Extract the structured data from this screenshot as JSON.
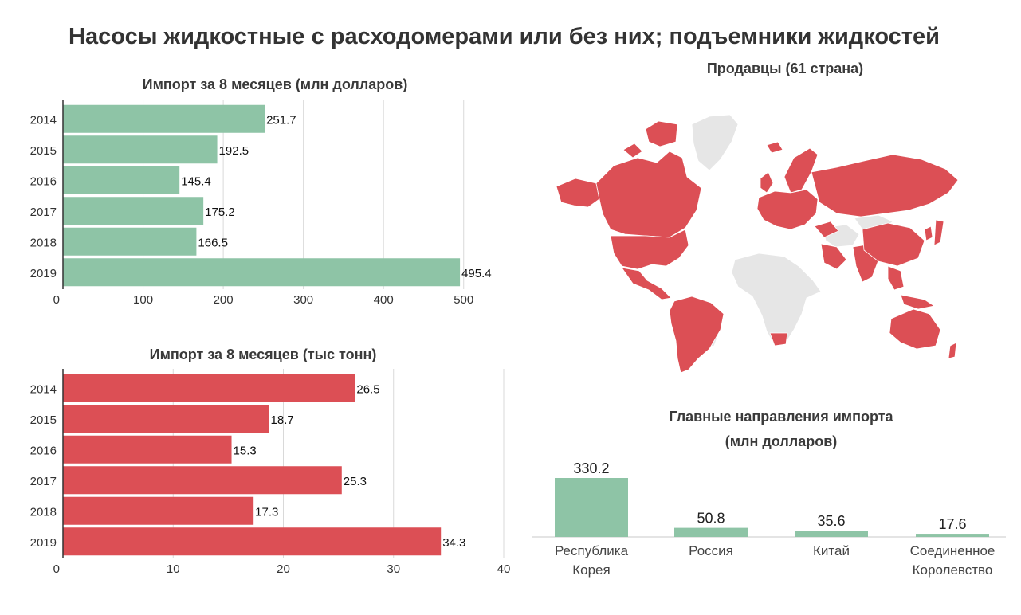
{
  "title": "Насосы жидкостные с расходомерами или без них; подъемники жидкостей",
  "colors": {
    "green": "#8ec4a6",
    "red": "#dc4f55",
    "grey_land": "#e6e6e6",
    "grid": "#d9d9d9",
    "axis": "#333333"
  },
  "chart_data": [
    {
      "type": "bar",
      "orientation": "horizontal",
      "title": "Импорт за 8 месяцев (млн долларов)",
      "categories": [
        "2014",
        "2015",
        "2016",
        "2017",
        "2018",
        "2019"
      ],
      "values": [
        251.7,
        192.5,
        145.4,
        175.2,
        166.5,
        495.4
      ],
      "value_labels": [
        "251.7",
        "192.5",
        "145.4",
        "175.2",
        "166.5",
        "495.4"
      ],
      "xlim": [
        0,
        550
      ],
      "xticks": [
        0,
        100,
        200,
        300,
        400,
        500
      ],
      "grid": true,
      "color": "#8ec4a6"
    },
    {
      "type": "bar",
      "orientation": "horizontal",
      "title": "Импорт за 8 месяцев (тыс тонн)",
      "categories": [
        "2014",
        "2015",
        "2016",
        "2017",
        "2018",
        "2019"
      ],
      "values": [
        26.5,
        18.7,
        15.3,
        25.3,
        17.3,
        34.3
      ],
      "value_labels": [
        "26.5",
        "18.7",
        "15.3",
        "25.3",
        "17.3",
        "34.3"
      ],
      "xlim": [
        0,
        40
      ],
      "xticks": [
        0,
        10,
        20,
        30,
        40
      ],
      "grid": true,
      "color": "#dc4f55"
    },
    {
      "type": "bar",
      "orientation": "vertical",
      "title": "Главные направления импорта (млн долларов)",
      "title_lines": [
        "Главные направления импорта",
        "(млн долларов)"
      ],
      "categories": [
        [
          "Республика",
          "Корея"
        ],
        [
          "Россия"
        ],
        [
          "Китай"
        ],
        [
          "Соединенное",
          "Королевство"
        ]
      ],
      "values": [
        330.2,
        50.8,
        35.6,
        17.6
      ],
      "value_labels": [
        "330.2",
        "50.8",
        "35.6",
        "17.6"
      ],
      "ylim": [
        0,
        330.2
      ],
      "grid": false,
      "color": "#8ec4a6"
    }
  ],
  "map": {
    "title": "Продавцы (61 страна)",
    "highlight_color": "#dc4f55",
    "other_color": "#e6e6e6"
  }
}
